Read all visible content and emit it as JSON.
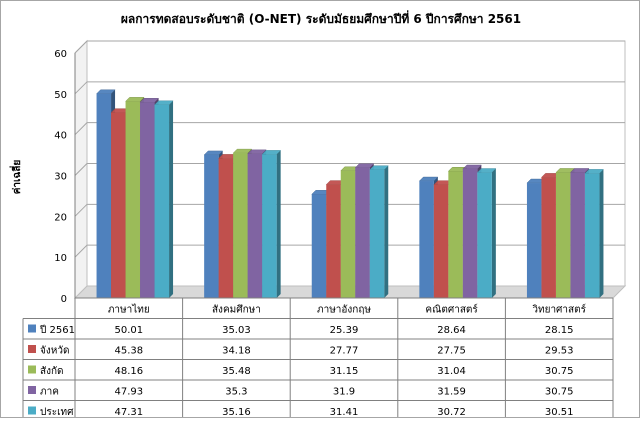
{
  "chart_data": {
    "type": "bar",
    "title": "ผลการทดสอบระดับชาติ (O-NET) ระดับมัธยมศึกษาปีที่ 6 ปีการศึกษา 2561",
    "ylabel": "ค่าเฉลี่ย",
    "xlabel": "",
    "ylim": [
      0,
      60
    ],
    "yticks": [
      0,
      10,
      20,
      30,
      40,
      50,
      60
    ],
    "grid": true,
    "legend_placement": "data-table-left",
    "categories": [
      "ภาษาไทย",
      "สังคมศึกษา",
      "ภาษาอังกฤษ",
      "คณิตศาสตร์",
      "วิทยาศาสตร์"
    ],
    "series": [
      {
        "name": "ปี 2561",
        "color": "#4f81bd",
        "values": [
          50.01,
          35.03,
          25.39,
          28.64,
          28.15
        ],
        "labels": [
          "50.01",
          "35.03",
          "25.39",
          "28.64",
          "28.15"
        ]
      },
      {
        "name": "จังหวัด",
        "color": "#c0504d",
        "values": [
          45.38,
          34.18,
          27.77,
          27.75,
          29.53
        ],
        "labels": [
          "45.38",
          "34.18",
          "27.77",
          "27.75",
          "29.53"
        ]
      },
      {
        "name": "สังกัด",
        "color": "#9bbb59",
        "values": [
          48.16,
          35.48,
          31.15,
          31.04,
          30.75
        ],
        "labels": [
          "48.16",
          "35.48",
          "31.15",
          "31.04",
          "30.75"
        ]
      },
      {
        "name": "ภาค",
        "color": "#8064a2",
        "values": [
          47.93,
          35.3,
          31.9,
          31.59,
          30.75
        ],
        "labels": [
          "47.93",
          "35.3",
          "31.9",
          "31.59",
          "30.75"
        ]
      },
      {
        "name": "ประเทศ",
        "color": "#4bacc6",
        "values": [
          47.31,
          35.16,
          31.41,
          30.72,
          30.51
        ],
        "labels": [
          "47.31",
          "35.16",
          "31.41",
          "30.72",
          "30.51"
        ]
      }
    ]
  }
}
